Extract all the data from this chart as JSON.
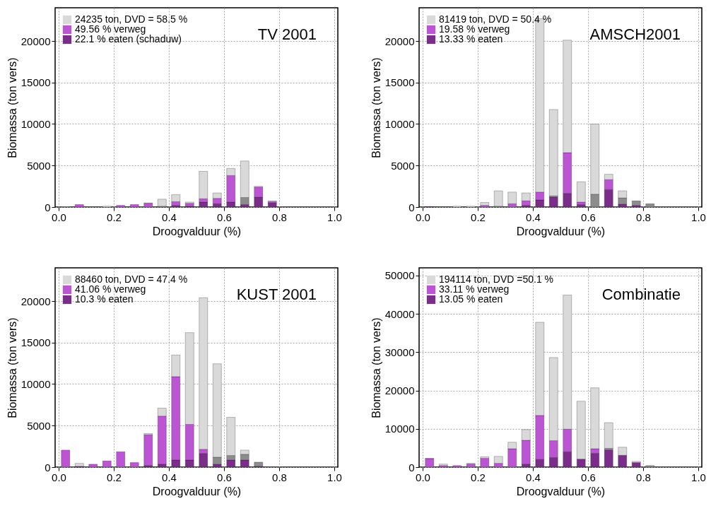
{
  "chart_data": [
    {
      "type": "bar",
      "stacked": true,
      "title": "TV  2001",
      "xlabel": "Droogvalduur (%)",
      "ylabel": "Biomassa (ton vers)",
      "x": [
        0.025,
        0.075,
        0.125,
        0.175,
        0.225,
        0.275,
        0.325,
        0.375,
        0.425,
        0.475,
        0.525,
        0.575,
        0.625,
        0.675,
        0.725,
        0.775
      ],
      "xlim": [
        0,
        1
      ],
      "xticks": [
        {
          "value": 0,
          "label": "0.0"
        },
        {
          "value": 0.2,
          "label": "0.2"
        },
        {
          "value": 0.4,
          "label": "0.4"
        },
        {
          "value": 0.6,
          "label": "0.6"
        },
        {
          "value": 0.8,
          "label": "0.8"
        },
        {
          "value": 1,
          "label": "1.0"
        }
      ],
      "ylim": [
        0,
        24000
      ],
      "yticks": [
        0,
        5000,
        10000,
        15000,
        20000
      ],
      "grid": true,
      "legend": "top left",
      "series": [
        {
          "name": "22.1 % eaten (schaduw)",
          "color": "#7a2e8a",
          "values": [
            null,
            null,
            null,
            null,
            null,
            null,
            null,
            null,
            200,
            100,
            600,
            400,
            600,
            300,
            1200,
            500
          ]
        },
        {
          "name": "49.56 % verweg",
          "color": "#bb55d4",
          "values": [
            null,
            300,
            null,
            null,
            200,
            300,
            450,
            null,
            450,
            350,
            400,
            650,
            3200,
            null,
            1200,
            150
          ]
        },
        {
          "color": "#8c8c8c",
          "values": [
            null,
            null,
            null,
            null,
            null,
            null,
            null,
            100,
            null,
            null,
            null,
            null,
            null,
            850,
            null,
            null
          ]
        },
        {
          "name": "24235 ton, DVD = 58.5 %",
          "color": "#d9d9d9",
          "values": [
            50,
            null,
            null,
            100,
            null,
            null,
            50,
            850,
            850,
            150,
            3300,
            650,
            850,
            4400,
            100,
            100
          ]
        }
      ]
    },
    {
      "type": "bar",
      "stacked": true,
      "title": "AMSCH2001",
      "xlabel": "Droogvalduur (%)",
      "ylabel": "Biomassa (ton vers)",
      "x": [
        0.025,
        0.075,
        0.125,
        0.175,
        0.225,
        0.275,
        0.325,
        0.375,
        0.425,
        0.475,
        0.525,
        0.575,
        0.625,
        0.675,
        0.725,
        0.775,
        0.825
      ],
      "xlim": [
        0,
        1
      ],
      "xticks": [
        {
          "value": 0,
          "label": "0.0"
        },
        {
          "value": 0.2,
          "label": "0.2"
        },
        {
          "value": 0.4,
          "label": "0.4"
        },
        {
          "value": 0.6,
          "label": "0.6"
        },
        {
          "value": 0.8,
          "label": "0.8"
        },
        {
          "value": 1,
          "label": "1.0"
        }
      ],
      "ylim": [
        0,
        24000
      ],
      "yticks": [
        0,
        5000,
        10000,
        15000,
        20000
      ],
      "grid": true,
      "legend": "top left",
      "series": [
        {
          "name": "13.33 % eaten",
          "color": "#7a2e8a",
          "values": [
            50,
            null,
            null,
            null,
            null,
            null,
            null,
            200,
            850,
            1200,
            1650,
            300,
            null,
            2100,
            350,
            200,
            null
          ]
        },
        {
          "name": "19.58 % verweg",
          "color": "#bb55d4",
          "values": [
            null,
            null,
            null,
            null,
            200,
            null,
            400,
            550,
            950,
            null,
            4900,
            300,
            null,
            1200,
            null,
            null,
            null
          ]
        },
        {
          "color": "#8c8c8c",
          "values": [
            null,
            null,
            null,
            null,
            null,
            100,
            null,
            null,
            null,
            150,
            null,
            null,
            1550,
            null,
            750,
            550,
            400
          ]
        },
        {
          "name": "81419 ton, DVD = 50.4 %",
          "color": "#d9d9d9",
          "values": [
            null,
            null,
            100,
            100,
            350,
            1850,
            1400,
            950,
            20900,
            10400,
            13550,
            2450,
            8450,
            650,
            850,
            null,
            null
          ]
        }
      ]
    },
    {
      "type": "bar",
      "stacked": true,
      "title": "KUST 2001",
      "xlabel": "Droogvalduur (%)",
      "ylabel": "Biomassa (ton vers)",
      "x": [
        0.025,
        0.075,
        0.125,
        0.175,
        0.225,
        0.275,
        0.325,
        0.375,
        0.425,
        0.475,
        0.525,
        0.575,
        0.625,
        0.675,
        0.725
      ],
      "xlim": [
        0,
        1
      ],
      "xticks": [
        {
          "value": 0,
          "label": "0.0"
        },
        {
          "value": 0.2,
          "label": "0.2"
        },
        {
          "value": 0.4,
          "label": "0.4"
        },
        {
          "value": 0.6,
          "label": "0.6"
        },
        {
          "value": 0.8,
          "label": "0.8"
        },
        {
          "value": 1,
          "label": "1.0"
        }
      ],
      "ylim": [
        0,
        24000
      ],
      "yticks": [
        0,
        5000,
        10000,
        15000,
        20000
      ],
      "grid": true,
      "legend": "top left",
      "series": [
        {
          "name": "10.3 % eaten",
          "color": "#7a2e8a",
          "values": [
            null,
            100,
            null,
            null,
            null,
            null,
            200,
            350,
            850,
            850,
            1650,
            350,
            850,
            850,
            100
          ]
        },
        {
          "name": "41.06 % verweg",
          "color": "#bb55d4",
          "values": [
            2050,
            null,
            350,
            750,
            1850,
            550,
            3700,
            5800,
            10050,
            4300,
            500,
            null,
            null,
            null,
            null
          ]
        },
        {
          "color": "#8c8c8c",
          "values": [
            null,
            null,
            null,
            null,
            null,
            null,
            null,
            null,
            null,
            null,
            null,
            850,
            550,
            700,
            500
          ]
        },
        {
          "name": "88460 ton, DVD = 47.4 %",
          "color": "#d9d9d9",
          "values": [
            null,
            350,
            null,
            null,
            null,
            null,
            150,
            950,
            2600,
            11050,
            18250,
            11250,
            4600,
            500,
            null
          ]
        }
      ]
    },
    {
      "type": "bar",
      "stacked": true,
      "title": "Combinatie",
      "xlabel": "Droogvalduur (%)",
      "ylabel": "Biomassa (ton vers)",
      "x": [
        0.025,
        0.075,
        0.125,
        0.175,
        0.225,
        0.275,
        0.325,
        0.375,
        0.425,
        0.475,
        0.525,
        0.575,
        0.625,
        0.675,
        0.725,
        0.775,
        0.825
      ],
      "xlim": [
        0,
        1
      ],
      "xticks": [
        {
          "value": 0,
          "label": "0.0"
        },
        {
          "value": 0.2,
          "label": "0.2"
        },
        {
          "value": 0.4,
          "label": "0.4"
        },
        {
          "value": 0.6,
          "label": "0.6"
        },
        {
          "value": 0.8,
          "label": "0.8"
        },
        {
          "value": 1,
          "label": "1.0"
        }
      ],
      "ylim": [
        0,
        52000
      ],
      "yticks": [
        0,
        10000,
        20000,
        30000,
        40000,
        50000
      ],
      "grid": true,
      "legend": "top left",
      "series": [
        {
          "name": "13.05 % eaten",
          "color": "#7a2e8a",
          "values": [
            null,
            null,
            null,
            null,
            null,
            null,
            null,
            800,
            2000,
            2500,
            4000,
            2100,
            3600,
            4500,
            3100,
            1200,
            null
          ]
        },
        {
          "name": "33.11 % verweg",
          "color": "#bb55d4",
          "values": [
            2200,
            400,
            400,
            800,
            2300,
            1000,
            4800,
            6200,
            11500,
            4400,
            5900,
            null,
            1200,
            null,
            null,
            null,
            null
          ]
        },
        {
          "color": "#8c8c8c",
          "values": [
            null,
            null,
            null,
            null,
            null,
            null,
            null,
            null,
            null,
            null,
            null,
            null,
            null,
            400,
            null,
            null,
            400
          ]
        },
        {
          "name": "194114 ton, DVD =50.1 %",
          "color": "#d9d9d9",
          "values": [
            100,
            400,
            null,
            200,
            400,
            1800,
            1700,
            2800,
            24300,
            21700,
            35000,
            15100,
            15900,
            6700,
            2100,
            300,
            null
          ]
        }
      ]
    }
  ]
}
